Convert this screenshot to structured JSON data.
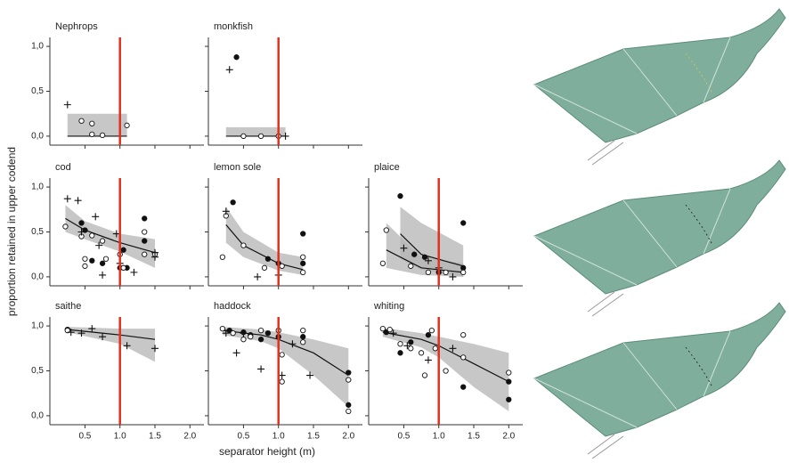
{
  "axes": {
    "xlabel": "separator height (m)",
    "ylabel": "proportion retained in upper codend",
    "xlim": [
      0.1,
      2.2
    ],
    "ylim": [
      -0.1,
      1.1
    ],
    "xticks": [
      0.5,
      {
        "value": 1.0,
        "label": "1.0"
      },
      1.5,
      {
        "value": 2.0,
        "label": "2.0"
      }
    ],
    "yticks": [
      {
        "value": 0,
        "label": "0,0"
      },
      {
        "value": 0.5,
        "label": "0,5"
      },
      {
        "value": 1.0,
        "label": "1,0"
      }
    ],
    "reference_x": 1.0,
    "reference_color": "#e0321e",
    "band_color": "#b4b4b4",
    "line_color": "#111111"
  },
  "chart_data": [
    {
      "type": "scatter",
      "title": "Nephrops",
      "points": [
        {
          "marker": "open",
          "x": [
            0.45,
            0.6,
            0.6,
            0.75,
            1.1
          ],
          "values": [
            0.17,
            0.14,
            0.02,
            0.01,
            0.12
          ]
        },
        {
          "marker": "plus",
          "x": [
            0.25
          ],
          "values": [
            0.35
          ]
        }
      ],
      "fits": [
        {
          "x": [
            0.25,
            1.1
          ],
          "values": [
            0,
            0
          ],
          "lower": [
            0,
            0
          ],
          "upper": [
            0.25,
            0.25
          ]
        }
      ]
    },
    {
      "type": "scatter",
      "title": "monkfish",
      "points": [
        {
          "marker": "filled",
          "x": [
            0.4
          ],
          "values": [
            0.88
          ]
        },
        {
          "marker": "open",
          "x": [
            0.5,
            0.75,
            1.0
          ],
          "values": [
            0,
            0,
            0
          ]
        },
        {
          "marker": "plus",
          "x": [
            0.3,
            1.1
          ],
          "values": [
            0.74,
            0
          ]
        }
      ],
      "fits": [
        {
          "x": [
            0.25,
            1.1
          ],
          "values": [
            0,
            0
          ],
          "lower": [
            0,
            0
          ],
          "upper": [
            0.1,
            0.1
          ]
        }
      ]
    },
    {
      "type": "scatter",
      "title": "cod",
      "points": [
        {
          "marker": "filled",
          "x": [
            0.45,
            0.5,
            0.6,
            0.75,
            1.0,
            1.05,
            1.1,
            1.35,
            1.35
          ],
          "values": [
            0.6,
            0.52,
            0.18,
            0.15,
            0.1,
            0.3,
            0.1,
            0.65,
            0.4
          ]
        },
        {
          "marker": "open",
          "x": [
            0.22,
            0.45,
            0.5,
            0.5,
            0.6,
            0.75,
            0.8,
            1.0,
            1.05,
            1.35,
            1.35,
            1.5
          ],
          "values": [
            0.56,
            0.45,
            0.2,
            0.12,
            0.46,
            0.4,
            0.2,
            0.25,
            0.1,
            0.5,
            0.25,
            0.25
          ]
        },
        {
          "marker": "plus",
          "x": [
            0.25,
            0.4,
            0.45,
            0.65,
            0.7,
            0.75,
            0.95,
            1.0,
            1.2,
            1.5,
            1.5
          ],
          "values": [
            0.87,
            0.85,
            0.5,
            0.67,
            0.35,
            0.02,
            0.48,
            0.15,
            0.05,
            0.22,
            0.27
          ]
        }
      ],
      "fits": [
        {
          "x": [
            0.22,
            0.5,
            1.0,
            1.5
          ],
          "values": [
            0.65,
            0.52,
            0.38,
            0.27
          ],
          "lower": [
            0.5,
            0.42,
            0.28,
            0.1
          ],
          "upper": [
            0.8,
            0.62,
            0.48,
            0.42
          ]
        }
      ]
    },
    {
      "type": "scatter",
      "title": "lemon sole",
      "points": [
        {
          "marker": "filled",
          "x": [
            0.35,
            0.85,
            1.0,
            1.35,
            1.35
          ],
          "values": [
            0.83,
            0.2,
            0.15,
            0.48,
            0.15
          ]
        },
        {
          "marker": "open",
          "x": [
            0.25,
            0.2,
            0.5,
            0.8,
            1.05,
            1.35,
            1.35
          ],
          "values": [
            0.68,
            0.22,
            0.35,
            0.1,
            0.12,
            0.22,
            0.05
          ]
        },
        {
          "marker": "plus",
          "x": [
            0.25,
            0.7,
            1.0
          ],
          "values": [
            0.73,
            0.0,
            0.02
          ]
        }
      ],
      "fits": [
        {
          "x": [
            0.25,
            0.5,
            1.0,
            1.35
          ],
          "values": [
            0.58,
            0.35,
            0.15,
            0.08
          ],
          "lower": [
            0.38,
            0.22,
            0.07,
            0.02
          ],
          "upper": [
            0.78,
            0.5,
            0.27,
            0.22
          ]
        }
      ]
    },
    {
      "type": "scatter",
      "title": "plaice",
      "points": [
        {
          "marker": "filled",
          "x": [
            0.45,
            0.65,
            0.8,
            1.35,
            1.35,
            1.0
          ],
          "values": [
            0.9,
            0.25,
            0.22,
            0.6,
            0.1,
            0.05
          ]
        },
        {
          "marker": "open",
          "x": [
            0.2,
            0.25,
            0.6,
            0.85,
            1.1,
            1.35
          ],
          "values": [
            0.15,
            0.52,
            0.12,
            0.05,
            0.05,
            0.05
          ]
        },
        {
          "marker": "plus",
          "x": [
            0.5,
            0.85,
            1.0,
            1.2
          ],
          "values": [
            0.32,
            0.18,
            0.1,
            0.0
          ]
        }
      ],
      "fits": [
        {
          "x": [
            0.45,
            0.75,
            1.35
          ],
          "values": [
            0.48,
            0.25,
            0.12
          ],
          "lower": [
            0.2,
            0.08,
            0.0
          ],
          "upper": [
            0.78,
            0.6,
            0.35
          ]
        },
        {
          "x": [
            0.25,
            0.75,
            1.35
          ],
          "values": [
            0.3,
            0.1,
            0.05
          ],
          "lower": [
            0.1,
            0.02,
            0.0
          ],
          "upper": [
            0.6,
            0.22,
            0.15
          ]
        }
      ]
    },
    {
      "type": "scatter",
      "title": "saithe",
      "points": [
        {
          "marker": "filled",
          "x": [
            0.25
          ],
          "values": [
            0.96
          ]
        },
        {
          "marker": "open",
          "x": [
            0.25
          ],
          "values": [
            0.95
          ]
        },
        {
          "marker": "plus",
          "x": [
            0.3,
            0.45,
            0.6,
            0.75,
            1.1,
            1.5
          ],
          "values": [
            0.93,
            0.92,
            0.97,
            0.88,
            0.78,
            0.75
          ]
        }
      ],
      "fits": [
        {
          "x": [
            0.25,
            1.0,
            1.5
          ],
          "values": [
            0.96,
            0.9,
            0.85
          ],
          "lower": [
            0.93,
            0.8,
            0.6
          ],
          "upper": [
            0.99,
            0.97,
            0.97
          ]
        }
      ]
    },
    {
      "type": "scatter",
      "title": "haddock",
      "points": [
        {
          "marker": "filled",
          "x": [
            0.3,
            0.5,
            0.6,
            0.75,
            0.85,
            1.0,
            1.35,
            2.0,
            2.0
          ],
          "values": [
            0.95,
            0.93,
            0.9,
            0.85,
            0.92,
            0.88,
            0.88,
            0.48,
            0.12
          ]
        },
        {
          "marker": "open",
          "x": [
            0.2,
            0.35,
            0.5,
            0.6,
            0.75,
            1.0,
            1.05,
            1.05,
            1.35,
            1.35,
            2.0,
            2.0
          ],
          "values": [
            0.97,
            0.92,
            0.85,
            0.88,
            0.95,
            0.95,
            0.38,
            0.68,
            0.95,
            0.82,
            0.4,
            0.05
          ]
        },
        {
          "marker": "plus",
          "x": [
            0.25,
            0.4,
            0.5,
            0.75,
            1.05,
            1.2,
            1.45
          ],
          "values": [
            0.92,
            0.7,
            0.92,
            0.52,
            0.45,
            0.8,
            0.45
          ]
        }
      ],
      "fits": [
        {
          "x": [
            0.2,
            0.75,
            1.0,
            1.5,
            2.0
          ],
          "values": [
            0.95,
            0.9,
            0.85,
            0.7,
            0.45
          ],
          "lower": [
            0.9,
            0.83,
            0.75,
            0.45,
            0.1
          ],
          "upper": [
            0.99,
            0.96,
            0.93,
            0.85,
            0.75
          ]
        }
      ]
    },
    {
      "type": "scatter",
      "title": "whiting",
      "points": [
        {
          "marker": "filled",
          "x": [
            0.25,
            0.45,
            0.6,
            0.85,
            1.35,
            2.0,
            2.0
          ],
          "values": [
            0.93,
            0.7,
            0.82,
            0.9,
            0.32,
            0.38,
            0.18
          ]
        },
        {
          "marker": "open",
          "x": [
            0.2,
            0.3,
            0.45,
            0.6,
            0.75,
            0.8,
            0.9,
            0.95,
            1.1,
            1.35,
            1.35,
            2.0
          ],
          "values": [
            0.97,
            0.96,
            0.8,
            0.75,
            0.7,
            0.45,
            0.95,
            0.75,
            0.5,
            0.65,
            0.9,
            0.48
          ]
        },
        {
          "marker": "plus",
          "x": [
            0.35,
            0.55,
            0.85,
            1.2
          ],
          "values": [
            0.92,
            0.78,
            0.62,
            0.75
          ]
        }
      ],
      "fits": [
        {
          "x": [
            0.2,
            0.75,
            1.0,
            1.5,
            2.0
          ],
          "values": [
            0.93,
            0.85,
            0.78,
            0.58,
            0.38
          ],
          "lower": [
            0.88,
            0.76,
            0.65,
            0.32,
            0.05
          ],
          "upper": [
            0.98,
            0.92,
            0.88,
            0.8,
            0.7
          ]
        }
      ]
    }
  ]
}
